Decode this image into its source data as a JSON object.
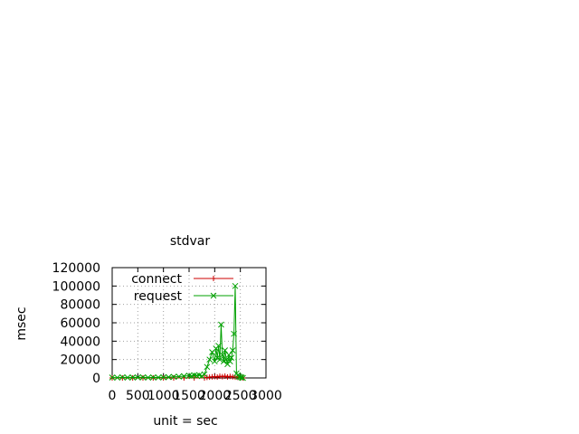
{
  "chart_data": {
    "type": "line",
    "title": "stdvar",
    "xlabel": "unit = sec",
    "ylabel": "msec",
    "xlim": [
      0,
      3000
    ],
    "ylim": [
      0,
      120000
    ],
    "x_ticks": [
      0,
      500,
      1000,
      1500,
      2000,
      2500,
      3000
    ],
    "x_tick_labels": [
      "0",
      "500",
      "1000",
      "1500",
      "2000",
      "2500",
      "3000"
    ],
    "y_ticks": [
      0,
      20000,
      40000,
      60000,
      80000,
      100000,
      120000
    ],
    "y_tick_labels": [
      "0",
      "20000",
      "40000",
      "60000",
      "80000",
      "100000",
      "120000"
    ],
    "grid": true,
    "legend_position": "top-right",
    "series": [
      {
        "name": "connect",
        "color": "#cc0000",
        "marker": "plus",
        "x": [
          0,
          200,
          400,
          600,
          800,
          1000,
          1200,
          1400,
          1600,
          1800,
          1850,
          1900,
          1950,
          2000,
          2050,
          2100,
          2150,
          2200,
          2250,
          2300,
          2350,
          2400,
          2450,
          2500,
          2550
        ],
        "y": [
          0,
          0,
          0,
          0,
          0,
          0,
          0,
          0,
          0,
          0,
          600,
          900,
          1200,
          1500,
          1000,
          1800,
          1300,
          2000,
          1100,
          1700,
          1200,
          900,
          600,
          300,
          0
        ]
      },
      {
        "name": "request",
        "color": "#00a000",
        "marker": "x",
        "x": [
          0,
          100,
          200,
          300,
          400,
          500,
          600,
          700,
          800,
          900,
          1000,
          1100,
          1200,
          1300,
          1400,
          1500,
          1550,
          1600,
          1650,
          1700,
          1750,
          1800,
          1850,
          1900,
          1950,
          2000,
          2025,
          2050,
          2075,
          2100,
          2125,
          2150,
          2175,
          2200,
          2225,
          2250,
          2275,
          2300,
          2325,
          2350,
          2375,
          2400,
          2425,
          2450,
          2475,
          2500,
          2525,
          2550
        ],
        "y": [
          500,
          300,
          800,
          400,
          600,
          500,
          700,
          400,
          600,
          500,
          700,
          900,
          1200,
          1500,
          2000,
          2500,
          2000,
          3000,
          2500,
          3000,
          2000,
          4000,
          12000,
          20000,
          28000,
          18000,
          32000,
          22000,
          35000,
          20000,
          58000,
          25000,
          18000,
          30000,
          20000,
          15000,
          25000,
          18000,
          22000,
          30000,
          48000,
          100000,
          5000,
          3000,
          1500,
          1000,
          500,
          0
        ]
      }
    ]
  }
}
